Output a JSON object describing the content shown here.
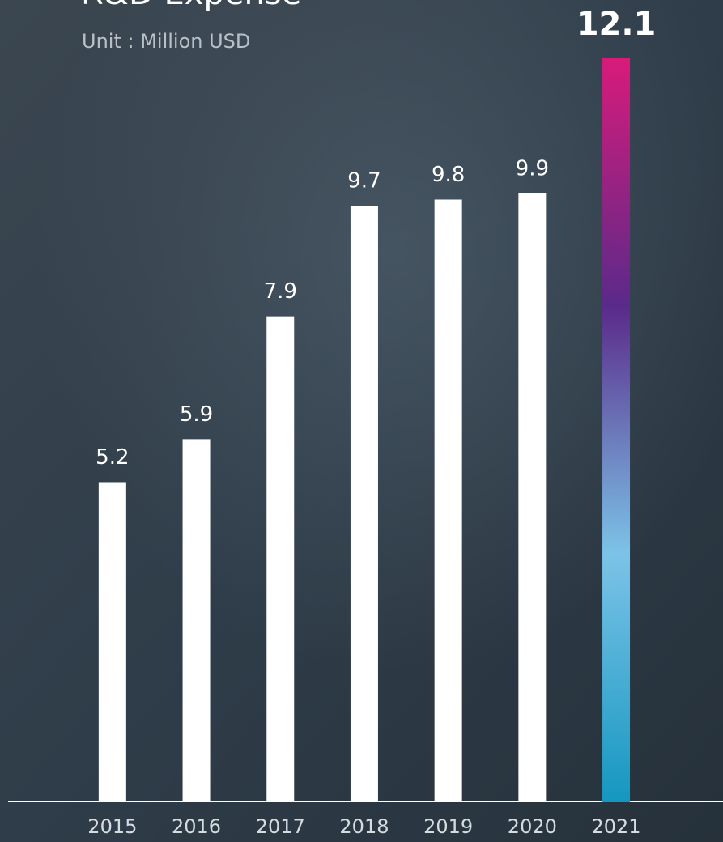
{
  "chart_data": {
    "type": "bar",
    "title": "R&D Expense",
    "subtitle": "Unit : Million USD",
    "categories": [
      "2015",
      "2016",
      "2017",
      "2018",
      "2019",
      "2020",
      "2021"
    ],
    "values": [
      5.2,
      5.9,
      7.9,
      9.7,
      9.8,
      9.9,
      12.1
    ],
    "color": "#ffffff",
    "highlight_gradient": [
      "#d81b7a",
      "#5a2a8a",
      "#7cc3e8",
      "#1597c0"
    ]
  }
}
